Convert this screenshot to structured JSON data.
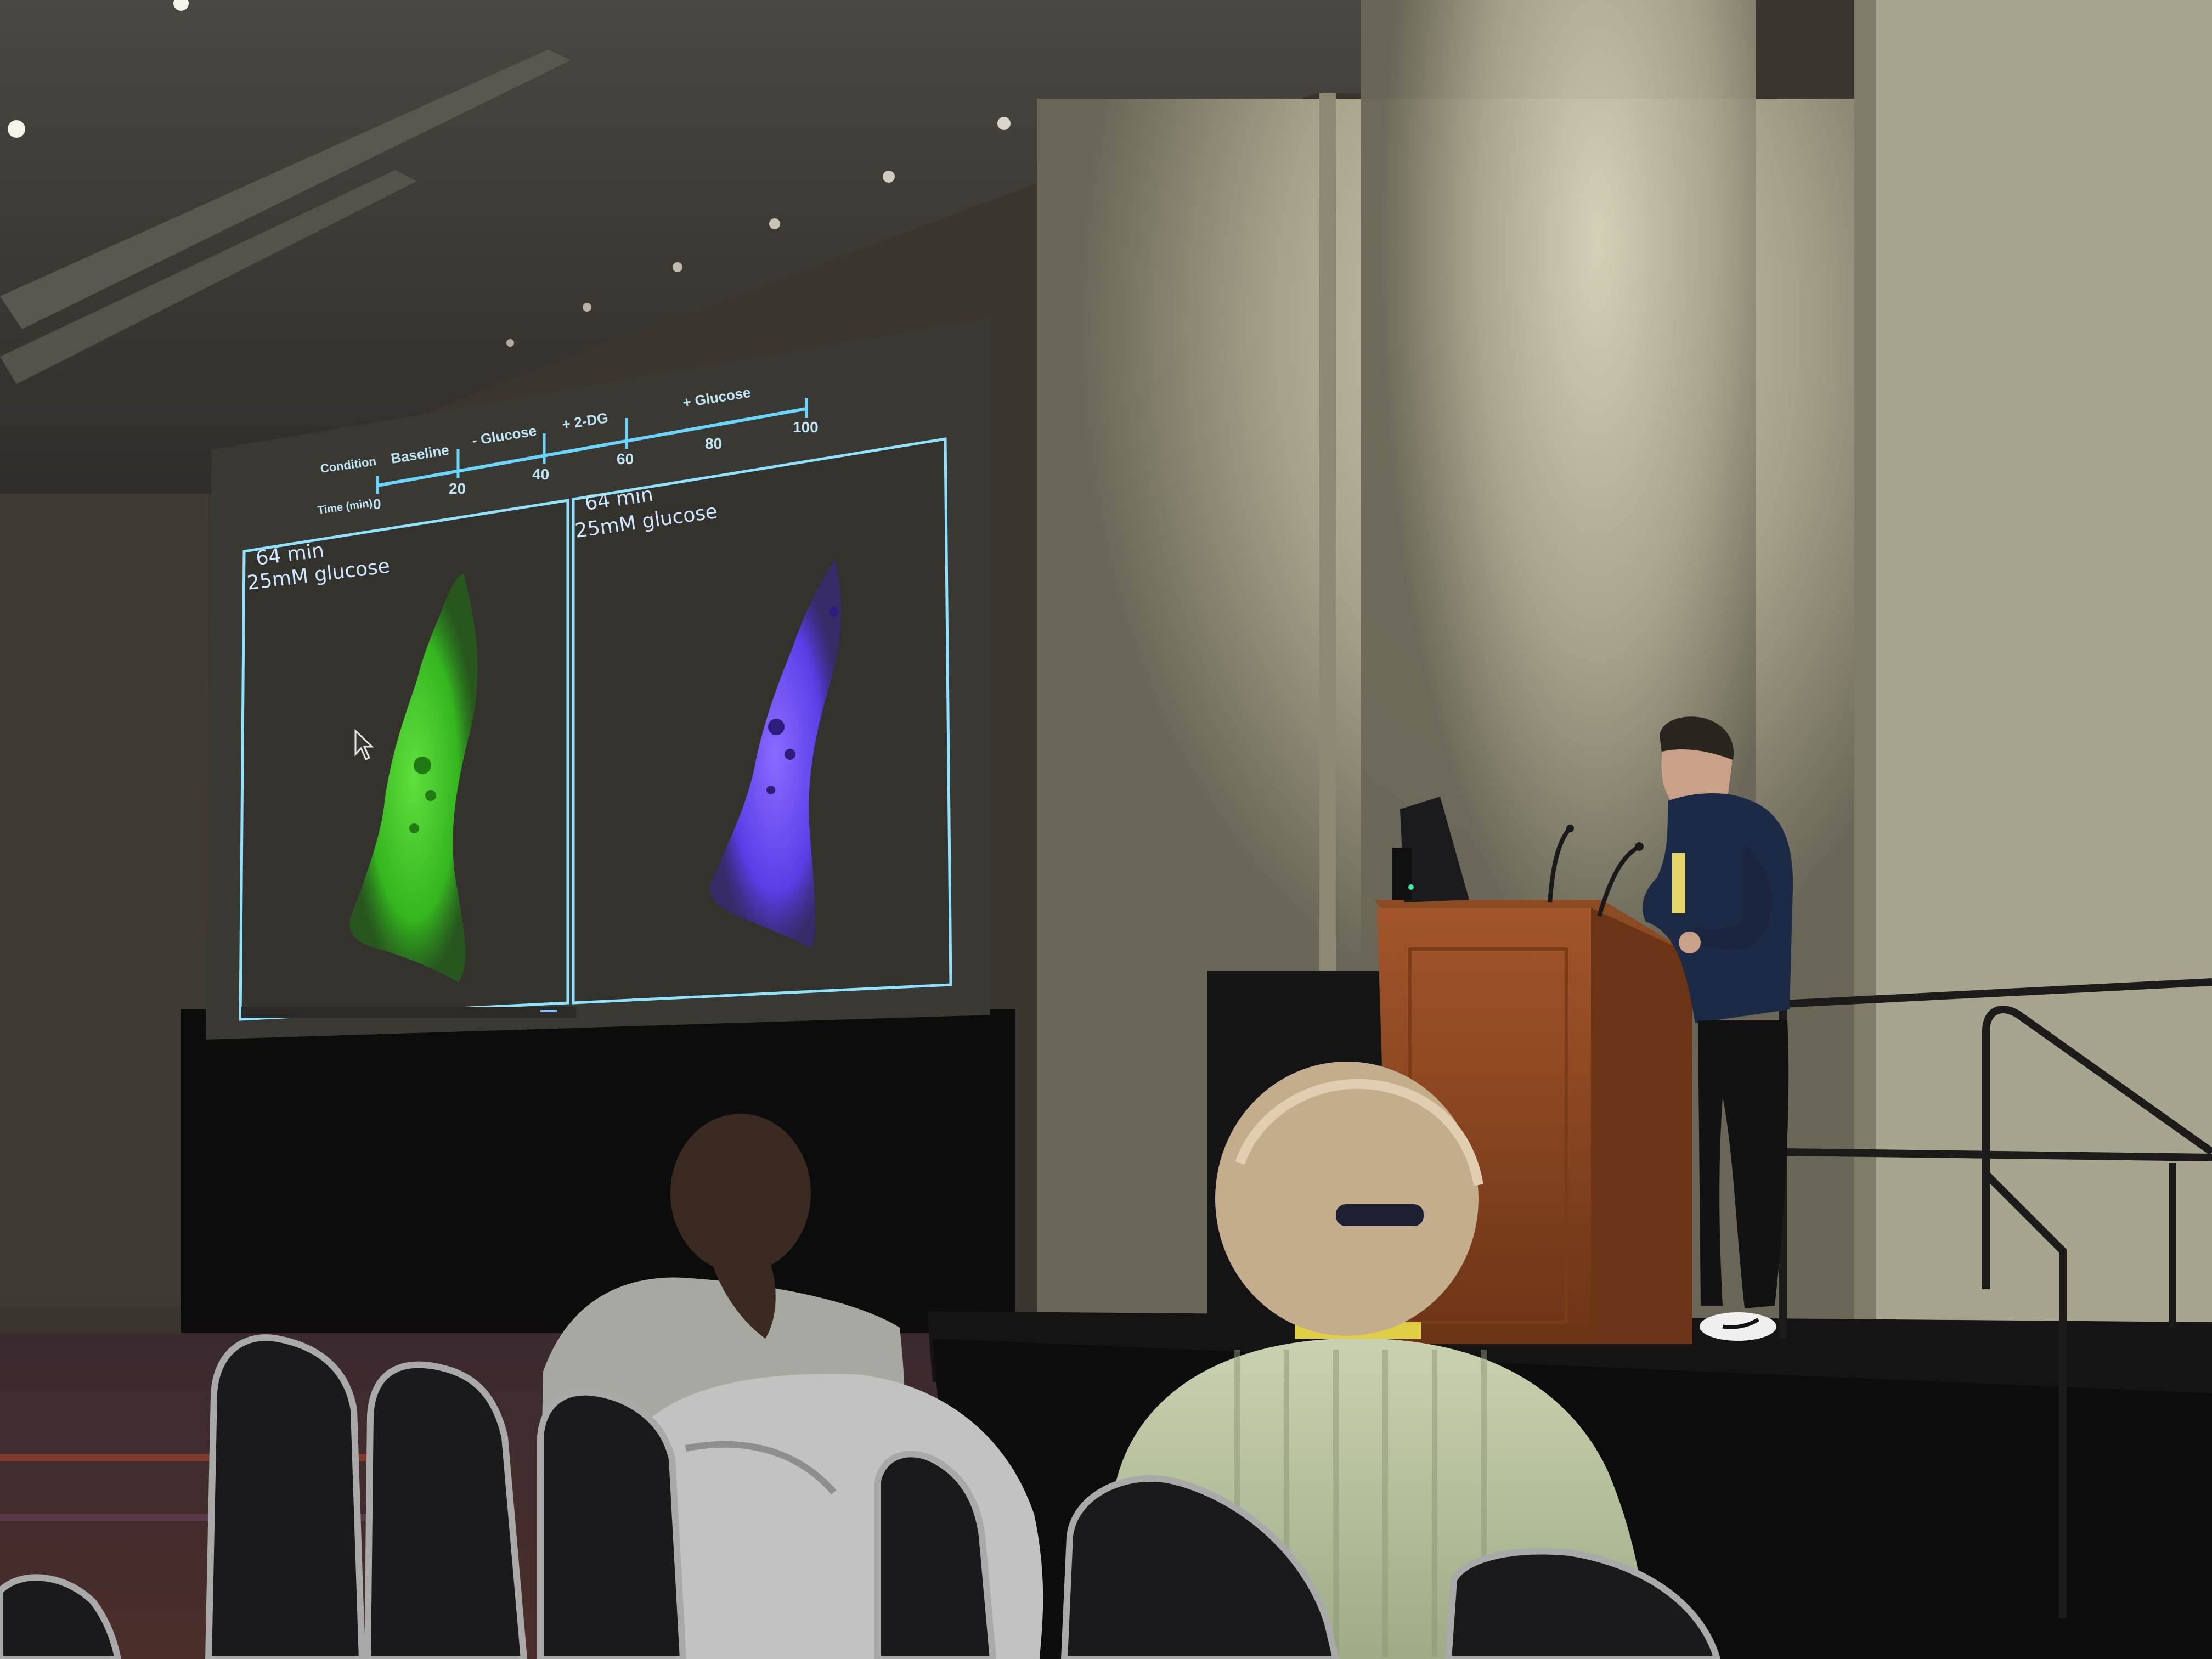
{
  "scene": {
    "description_tags": [
      "conference-room",
      "projection-screen",
      "podium",
      "audience"
    ]
  },
  "slide": {
    "timeline": {
      "condition_label": "Condition",
      "time_label": "Time (min)",
      "phases": [
        "Baseline",
        "- Glucose",
        "+ 2-DG",
        "+ Glucose"
      ],
      "ticks": [
        "0",
        "20",
        "40",
        "60",
        "80",
        "100"
      ]
    },
    "left_panel": {
      "time": "64 min",
      "condition": "25mM glucose"
    },
    "right_panel": {
      "time": "64 min",
      "condition": "25mM glucose"
    },
    "colors": {
      "left_cell": "#3fcf2b",
      "right_cell": "#6a4dff",
      "frame": "#8fe3ff",
      "timeline": "#69d6ff"
    }
  }
}
